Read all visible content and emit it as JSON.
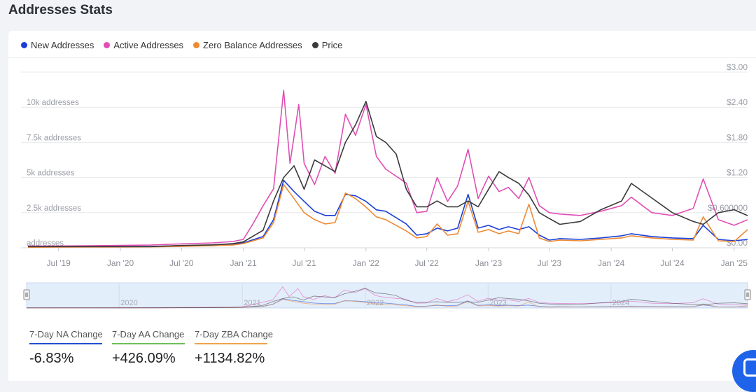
{
  "page": {
    "title": "Addresses Stats"
  },
  "legend": [
    {
      "label": "New Addresses",
      "color": "#1a3fd6"
    },
    {
      "label": "Active Addresses",
      "color": "#e04fb4"
    },
    {
      "label": "Zero Balance Addresses",
      "color": "#ee8a33"
    },
    {
      "label": "Price",
      "color": "#3a3a3a"
    }
  ],
  "stats": [
    {
      "label": "7-Day NA Change",
      "value": "-6.83%",
      "color": "#1f4fd1"
    },
    {
      "label": "7-Day AA Change",
      "value": "+426.09%",
      "color": "#6fbf5a"
    },
    {
      "label": "7-Day ZBA Change",
      "value": "+1134.82%",
      "color": "#eea54a"
    }
  ],
  "navigator": {
    "year_labels": [
      "2020",
      "2021",
      "2022",
      "2023",
      "2024"
    ]
  },
  "chart_data": {
    "type": "line",
    "x_range": [
      "2019-04-01",
      "2025-02-10"
    ],
    "x_ticks": [
      {
        "date": "2019-07-01",
        "label": "Jul '19"
      },
      {
        "date": "2020-01-01",
        "label": "Jan '20"
      },
      {
        "date": "2020-07-01",
        "label": "Jul '20"
      },
      {
        "date": "2021-01-01",
        "label": "Jan '21"
      },
      {
        "date": "2021-07-01",
        "label": "Jul '21"
      },
      {
        "date": "2022-01-01",
        "label": "Jan '22"
      },
      {
        "date": "2022-07-01",
        "label": "Jul '22"
      },
      {
        "date": "2023-01-01",
        "label": "Jan '23"
      },
      {
        "date": "2023-07-01",
        "label": "Jul '23"
      },
      {
        "date": "2024-01-01",
        "label": "Jan '24"
      },
      {
        "date": "2024-07-01",
        "label": "Jul '24"
      },
      {
        "date": "2025-01-01",
        "label": "Jan '25"
      }
    ],
    "y_left": {
      "range": [
        0,
        12500
      ],
      "ticks": [
        {
          "value": 0,
          "label": "addresses"
        },
        {
          "value": 2500,
          "label": "2.5k addresses"
        },
        {
          "value": 5000,
          "label": "5k addresses"
        },
        {
          "value": 7500,
          "label": "7.5k addresses"
        },
        {
          "value": 10000,
          "label": "10k addresses"
        }
      ]
    },
    "y_right": {
      "range": [
        0,
        3.0
      ],
      "ticks": [
        {
          "value": 0,
          "label": "$0.00"
        },
        {
          "value": 0.6,
          "label": "$0.600000"
        },
        {
          "value": 1.2,
          "label": "$1.20"
        },
        {
          "value": 1.8,
          "label": "$1.80"
        },
        {
          "value": 2.4,
          "label": "$2.40"
        },
        {
          "value": 3.0,
          "label": "$3.00"
        }
      ]
    },
    "grid": true,
    "legend_position": "top-left",
    "series": [
      {
        "name": "Active Addresses",
        "color": "#e04fb4",
        "axis": "left",
        "points": [
          [
            "2019-04-01",
            120
          ],
          [
            "2019-07-01",
            130
          ],
          [
            "2019-10-01",
            150
          ],
          [
            "2020-01-01",
            170
          ],
          [
            "2020-04-01",
            200
          ],
          [
            "2020-07-01",
            280
          ],
          [
            "2020-10-01",
            350
          ],
          [
            "2020-12-01",
            450
          ],
          [
            "2021-01-01",
            600
          ],
          [
            "2021-02-01",
            1800
          ],
          [
            "2021-03-01",
            3000
          ],
          [
            "2021-04-01",
            4200
          ],
          [
            "2021-05-01",
            11200
          ],
          [
            "2021-05-20",
            6000
          ],
          [
            "2021-06-15",
            10200
          ],
          [
            "2021-07-01",
            6000
          ],
          [
            "2021-08-01",
            4500
          ],
          [
            "2021-09-01",
            6500
          ],
          [
            "2021-10-01",
            5300
          ],
          [
            "2021-11-01",
            9500
          ],
          [
            "2021-12-01",
            8000
          ],
          [
            "2022-01-01",
            10200
          ],
          [
            "2022-02-01",
            6500
          ],
          [
            "2022-03-01",
            5600
          ],
          [
            "2022-05-01",
            4600
          ],
          [
            "2022-06-01",
            2500
          ],
          [
            "2022-07-01",
            2600
          ],
          [
            "2022-08-01",
            5000
          ],
          [
            "2022-09-01",
            3300
          ],
          [
            "2022-10-01",
            4400
          ],
          [
            "2022-11-01",
            7000
          ],
          [
            "2022-12-01",
            3500
          ],
          [
            "2023-01-01",
            5100
          ],
          [
            "2023-02-01",
            4000
          ],
          [
            "2023-03-01",
            4300
          ],
          [
            "2023-04-01",
            3500
          ],
          [
            "2023-05-01",
            5000
          ],
          [
            "2023-06-01",
            3000
          ],
          [
            "2023-07-01",
            2500
          ],
          [
            "2023-08-01",
            2400
          ],
          [
            "2023-10-01",
            2300
          ],
          [
            "2023-12-01",
            2600
          ],
          [
            "2024-02-01",
            3000
          ],
          [
            "2024-03-01",
            3600
          ],
          [
            "2024-05-01",
            2500
          ],
          [
            "2024-07-01",
            2300
          ],
          [
            "2024-09-01",
            2800
          ],
          [
            "2024-10-01",
            4900
          ],
          [
            "2024-11-15",
            2000
          ],
          [
            "2025-01-01",
            1600
          ],
          [
            "2025-02-10",
            2000
          ]
        ]
      },
      {
        "name": "New Addresses",
        "color": "#1a3fd6",
        "axis": "left",
        "points": [
          [
            "2019-04-01",
            60
          ],
          [
            "2019-07-01",
            70
          ],
          [
            "2019-10-01",
            80
          ],
          [
            "2020-01-01",
            90
          ],
          [
            "2020-04-01",
            100
          ],
          [
            "2020-07-01",
            150
          ],
          [
            "2020-10-01",
            200
          ],
          [
            "2020-12-01",
            250
          ],
          [
            "2021-01-01",
            350
          ],
          [
            "2021-03-01",
            800
          ],
          [
            "2021-04-01",
            2000
          ],
          [
            "2021-05-01",
            4800
          ],
          [
            "2021-06-01",
            4000
          ],
          [
            "2021-07-01",
            3300
          ],
          [
            "2021-08-01",
            2600
          ],
          [
            "2021-09-01",
            2300
          ],
          [
            "2021-10-01",
            2300
          ],
          [
            "2021-11-01",
            3800
          ],
          [
            "2021-12-01",
            3700
          ],
          [
            "2022-01-01",
            3300
          ],
          [
            "2022-02-01",
            2700
          ],
          [
            "2022-03-01",
            2600
          ],
          [
            "2022-05-01",
            1700
          ],
          [
            "2022-06-01",
            900
          ],
          [
            "2022-07-01",
            1000
          ],
          [
            "2022-08-01",
            1400
          ],
          [
            "2022-09-01",
            1200
          ],
          [
            "2022-10-01",
            1400
          ],
          [
            "2022-11-01",
            3800
          ],
          [
            "2022-12-01",
            1400
          ],
          [
            "2023-01-01",
            1600
          ],
          [
            "2023-02-01",
            1300
          ],
          [
            "2023-03-01",
            1500
          ],
          [
            "2023-04-01",
            1300
          ],
          [
            "2023-05-01",
            1500
          ],
          [
            "2023-06-01",
            900
          ],
          [
            "2023-07-01",
            550
          ],
          [
            "2023-08-01",
            650
          ],
          [
            "2023-10-01",
            600
          ],
          [
            "2023-12-01",
            700
          ],
          [
            "2024-02-01",
            850
          ],
          [
            "2024-03-01",
            1000
          ],
          [
            "2024-05-01",
            800
          ],
          [
            "2024-07-01",
            700
          ],
          [
            "2024-09-01",
            650
          ],
          [
            "2024-10-01",
            1600
          ],
          [
            "2024-11-15",
            600
          ],
          [
            "2025-01-01",
            500
          ],
          [
            "2025-02-10",
            600
          ]
        ]
      },
      {
        "name": "Zero Balance Addresses",
        "color": "#ee8a33",
        "axis": "left",
        "points": [
          [
            "2019-04-01",
            40
          ],
          [
            "2019-07-01",
            50
          ],
          [
            "2019-10-01",
            60
          ],
          [
            "2020-01-01",
            60
          ],
          [
            "2020-04-01",
            70
          ],
          [
            "2020-07-01",
            100
          ],
          [
            "2020-10-01",
            150
          ],
          [
            "2020-12-01",
            200
          ],
          [
            "2021-01-01",
            300
          ],
          [
            "2021-03-01",
            700
          ],
          [
            "2021-04-01",
            1800
          ],
          [
            "2021-05-01",
            4500
          ],
          [
            "2021-06-01",
            3500
          ],
          [
            "2021-07-01",
            2500
          ],
          [
            "2021-08-01",
            2000
          ],
          [
            "2021-09-01",
            1700
          ],
          [
            "2021-10-01",
            1800
          ],
          [
            "2021-11-01",
            3900
          ],
          [
            "2021-12-01",
            3500
          ],
          [
            "2022-01-01",
            2900
          ],
          [
            "2022-02-01",
            2200
          ],
          [
            "2022-03-01",
            2000
          ],
          [
            "2022-05-01",
            1200
          ],
          [
            "2022-06-01",
            700
          ],
          [
            "2022-07-01",
            800
          ],
          [
            "2022-08-01",
            1700
          ],
          [
            "2022-09-01",
            900
          ],
          [
            "2022-10-01",
            1000
          ],
          [
            "2022-11-01",
            3300
          ],
          [
            "2022-12-01",
            1100
          ],
          [
            "2023-01-01",
            1300
          ],
          [
            "2023-02-01",
            1000
          ],
          [
            "2023-03-01",
            1200
          ],
          [
            "2023-04-01",
            1000
          ],
          [
            "2023-05-01",
            3100
          ],
          [
            "2023-06-01",
            700
          ],
          [
            "2023-07-01",
            450
          ],
          [
            "2023-08-01",
            550
          ],
          [
            "2023-10-01",
            500
          ],
          [
            "2023-12-01",
            600
          ],
          [
            "2024-02-01",
            700
          ],
          [
            "2024-03-01",
            850
          ],
          [
            "2024-05-01",
            700
          ],
          [
            "2024-07-01",
            600
          ],
          [
            "2024-09-01",
            550
          ],
          [
            "2024-10-01",
            2200
          ],
          [
            "2024-11-15",
            500
          ],
          [
            "2025-01-01",
            450
          ],
          [
            "2025-02-10",
            1300
          ]
        ]
      },
      {
        "name": "Price",
        "color": "#3a3a3a",
        "axis": "right",
        "points": [
          [
            "2019-04-01",
            0.02
          ],
          [
            "2019-07-01",
            0.02
          ],
          [
            "2019-10-01",
            0.02
          ],
          [
            "2020-01-01",
            0.02
          ],
          [
            "2020-04-01",
            0.02
          ],
          [
            "2020-07-01",
            0.04
          ],
          [
            "2020-10-01",
            0.05
          ],
          [
            "2020-12-01",
            0.07
          ],
          [
            "2021-01-01",
            0.1
          ],
          [
            "2021-03-01",
            0.3
          ],
          [
            "2021-04-01",
            0.8
          ],
          [
            "2021-05-01",
            1.2
          ],
          [
            "2021-06-01",
            1.4
          ],
          [
            "2021-07-01",
            1.0
          ],
          [
            "2021-08-01",
            1.5
          ],
          [
            "2021-09-01",
            1.4
          ],
          [
            "2021-10-01",
            1.3
          ],
          [
            "2021-11-01",
            1.8
          ],
          [
            "2021-12-01",
            2.1
          ],
          [
            "2022-01-01",
            2.5
          ],
          [
            "2022-02-01",
            1.9
          ],
          [
            "2022-03-01",
            1.8
          ],
          [
            "2022-04-01",
            1.6
          ],
          [
            "2022-05-01",
            1.0
          ],
          [
            "2022-06-01",
            0.7
          ],
          [
            "2022-07-01",
            0.7
          ],
          [
            "2022-08-01",
            0.8
          ],
          [
            "2022-09-01",
            0.7
          ],
          [
            "2022-10-01",
            0.7
          ],
          [
            "2022-11-01",
            0.8
          ],
          [
            "2022-12-01",
            0.7
          ],
          [
            "2023-01-01",
            1.0
          ],
          [
            "2023-02-01",
            1.3
          ],
          [
            "2023-03-01",
            1.2
          ],
          [
            "2023-04-01",
            1.1
          ],
          [
            "2023-05-01",
            0.9
          ],
          [
            "2023-06-01",
            0.6
          ],
          [
            "2023-07-01",
            0.5
          ],
          [
            "2023-08-01",
            0.4
          ],
          [
            "2023-10-01",
            0.45
          ],
          [
            "2023-12-01",
            0.65
          ],
          [
            "2024-02-01",
            0.8
          ],
          [
            "2024-03-01",
            1.1
          ],
          [
            "2024-05-01",
            0.85
          ],
          [
            "2024-07-01",
            0.6
          ],
          [
            "2024-09-01",
            0.45
          ],
          [
            "2024-10-01",
            0.4
          ],
          [
            "2024-11-15",
            0.6
          ],
          [
            "2025-01-01",
            0.65
          ],
          [
            "2025-02-10",
            0.55
          ]
        ]
      }
    ]
  }
}
